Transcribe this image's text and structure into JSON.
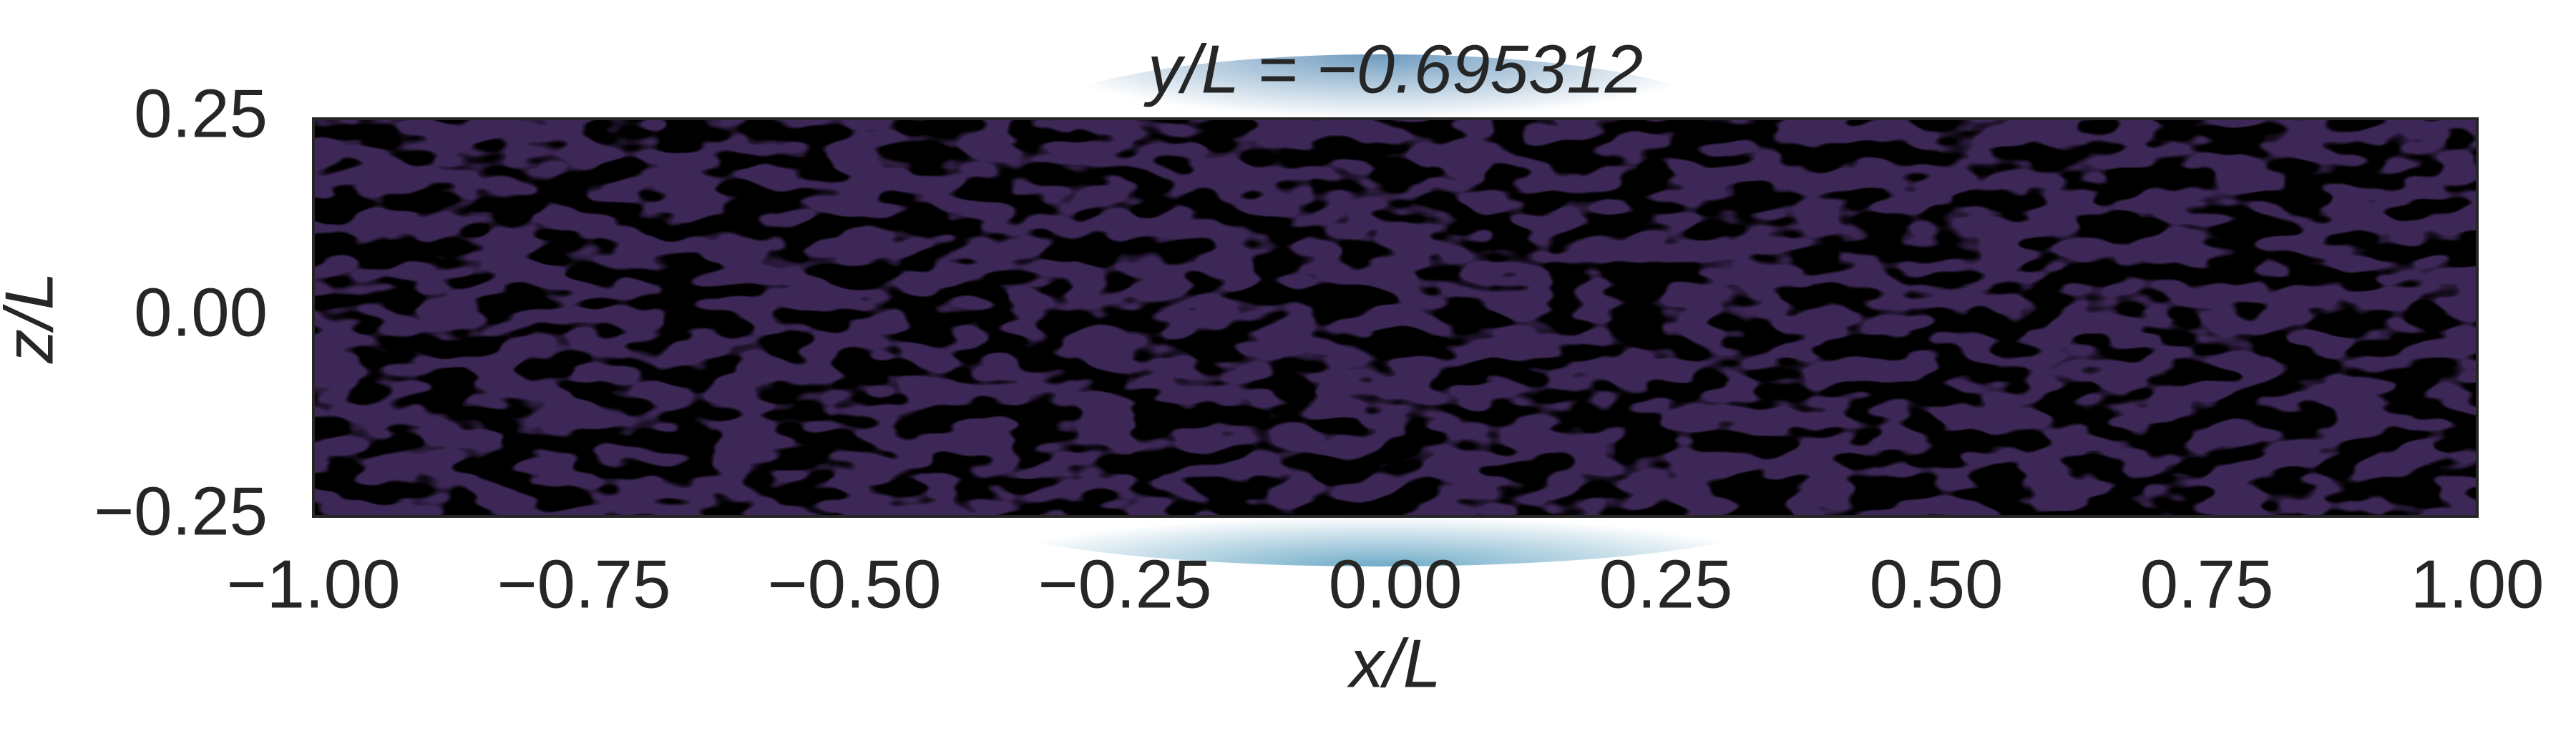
{
  "chart_data": {
    "type": "contour",
    "title": "y/L = −0.695312",
    "xlabel": "x/L",
    "ylabel": "z/L",
    "xlim": [
      -1,
      1
    ],
    "ylim": [
      -0.25,
      0.25
    ],
    "xticks": [
      {
        "value": -1,
        "label": "−1.00"
      },
      {
        "value": -0.75,
        "label": "−0.75"
      },
      {
        "value": -0.5,
        "label": "−0.50"
      },
      {
        "value": -0.25,
        "label": "−0.25"
      },
      {
        "value": 0,
        "label": "0.00"
      },
      {
        "value": 0.25,
        "label": "0.25"
      },
      {
        "value": 0.5,
        "label": "0.50"
      },
      {
        "value": 0.75,
        "label": "0.75"
      },
      {
        "value": 1,
        "label": "1.00"
      }
    ],
    "yticks": [
      {
        "value": -0.25,
        "label": "−0.25"
      },
      {
        "value": 0,
        "label": "0.00"
      },
      {
        "value": 0.25,
        "label": "0.25"
      }
    ]
  }
}
